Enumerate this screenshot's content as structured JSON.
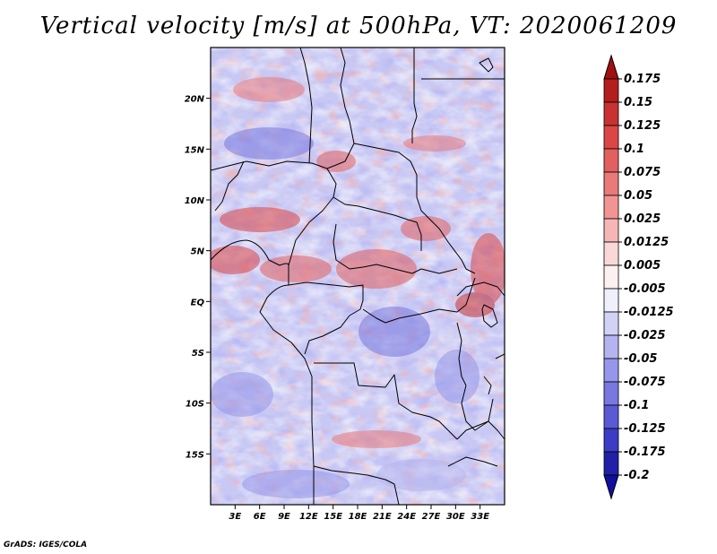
{
  "title": "Vertical velocity [m/s] at 500hPa, VT: 2020061209",
  "credit": "GrADS: IGES/COLA",
  "map": {
    "lon_range": [
      0,
      36
    ],
    "lat_range": [
      -20,
      25
    ],
    "lon_ticks": [
      "3E",
      "6E",
      "9E",
      "12E",
      "15E",
      "18E",
      "21E",
      "24E",
      "27E",
      "30E",
      "33E"
    ],
    "lon_tick_values": [
      3,
      6,
      9,
      12,
      15,
      18,
      21,
      24,
      27,
      30,
      33
    ],
    "lat_ticks": [
      "20N",
      "15N",
      "10N",
      "5N",
      "EQ",
      "5S",
      "10S",
      "15S"
    ],
    "lat_tick_values": [
      20,
      15,
      10,
      5,
      0,
      -5,
      -10,
      -15
    ]
  },
  "colorbar": {
    "labels": [
      "0.175",
      "0.15",
      "0.125",
      "0.1",
      "0.075",
      "0.05",
      "0.025",
      "0.0125",
      "0.005",
      "-0.005",
      "-0.0125",
      "-0.025",
      "-0.05",
      "-0.075",
      "-0.1",
      "-0.125",
      "-0.175",
      "-0.2"
    ],
    "colors": [
      "#a01010",
      "#b41e1e",
      "#c83232",
      "#dc4646",
      "#e26060",
      "#ea7a7a",
      "#f29494",
      "#f7b6b6",
      "#fbd8d8",
      "#fdf0f0",
      "#f0f0fd",
      "#d2d2f7",
      "#b4b4f0",
      "#9696ea",
      "#7878e0",
      "#5a5ad4",
      "#3c3cc4",
      "#2020a8",
      "#1010a0"
    ]
  }
}
